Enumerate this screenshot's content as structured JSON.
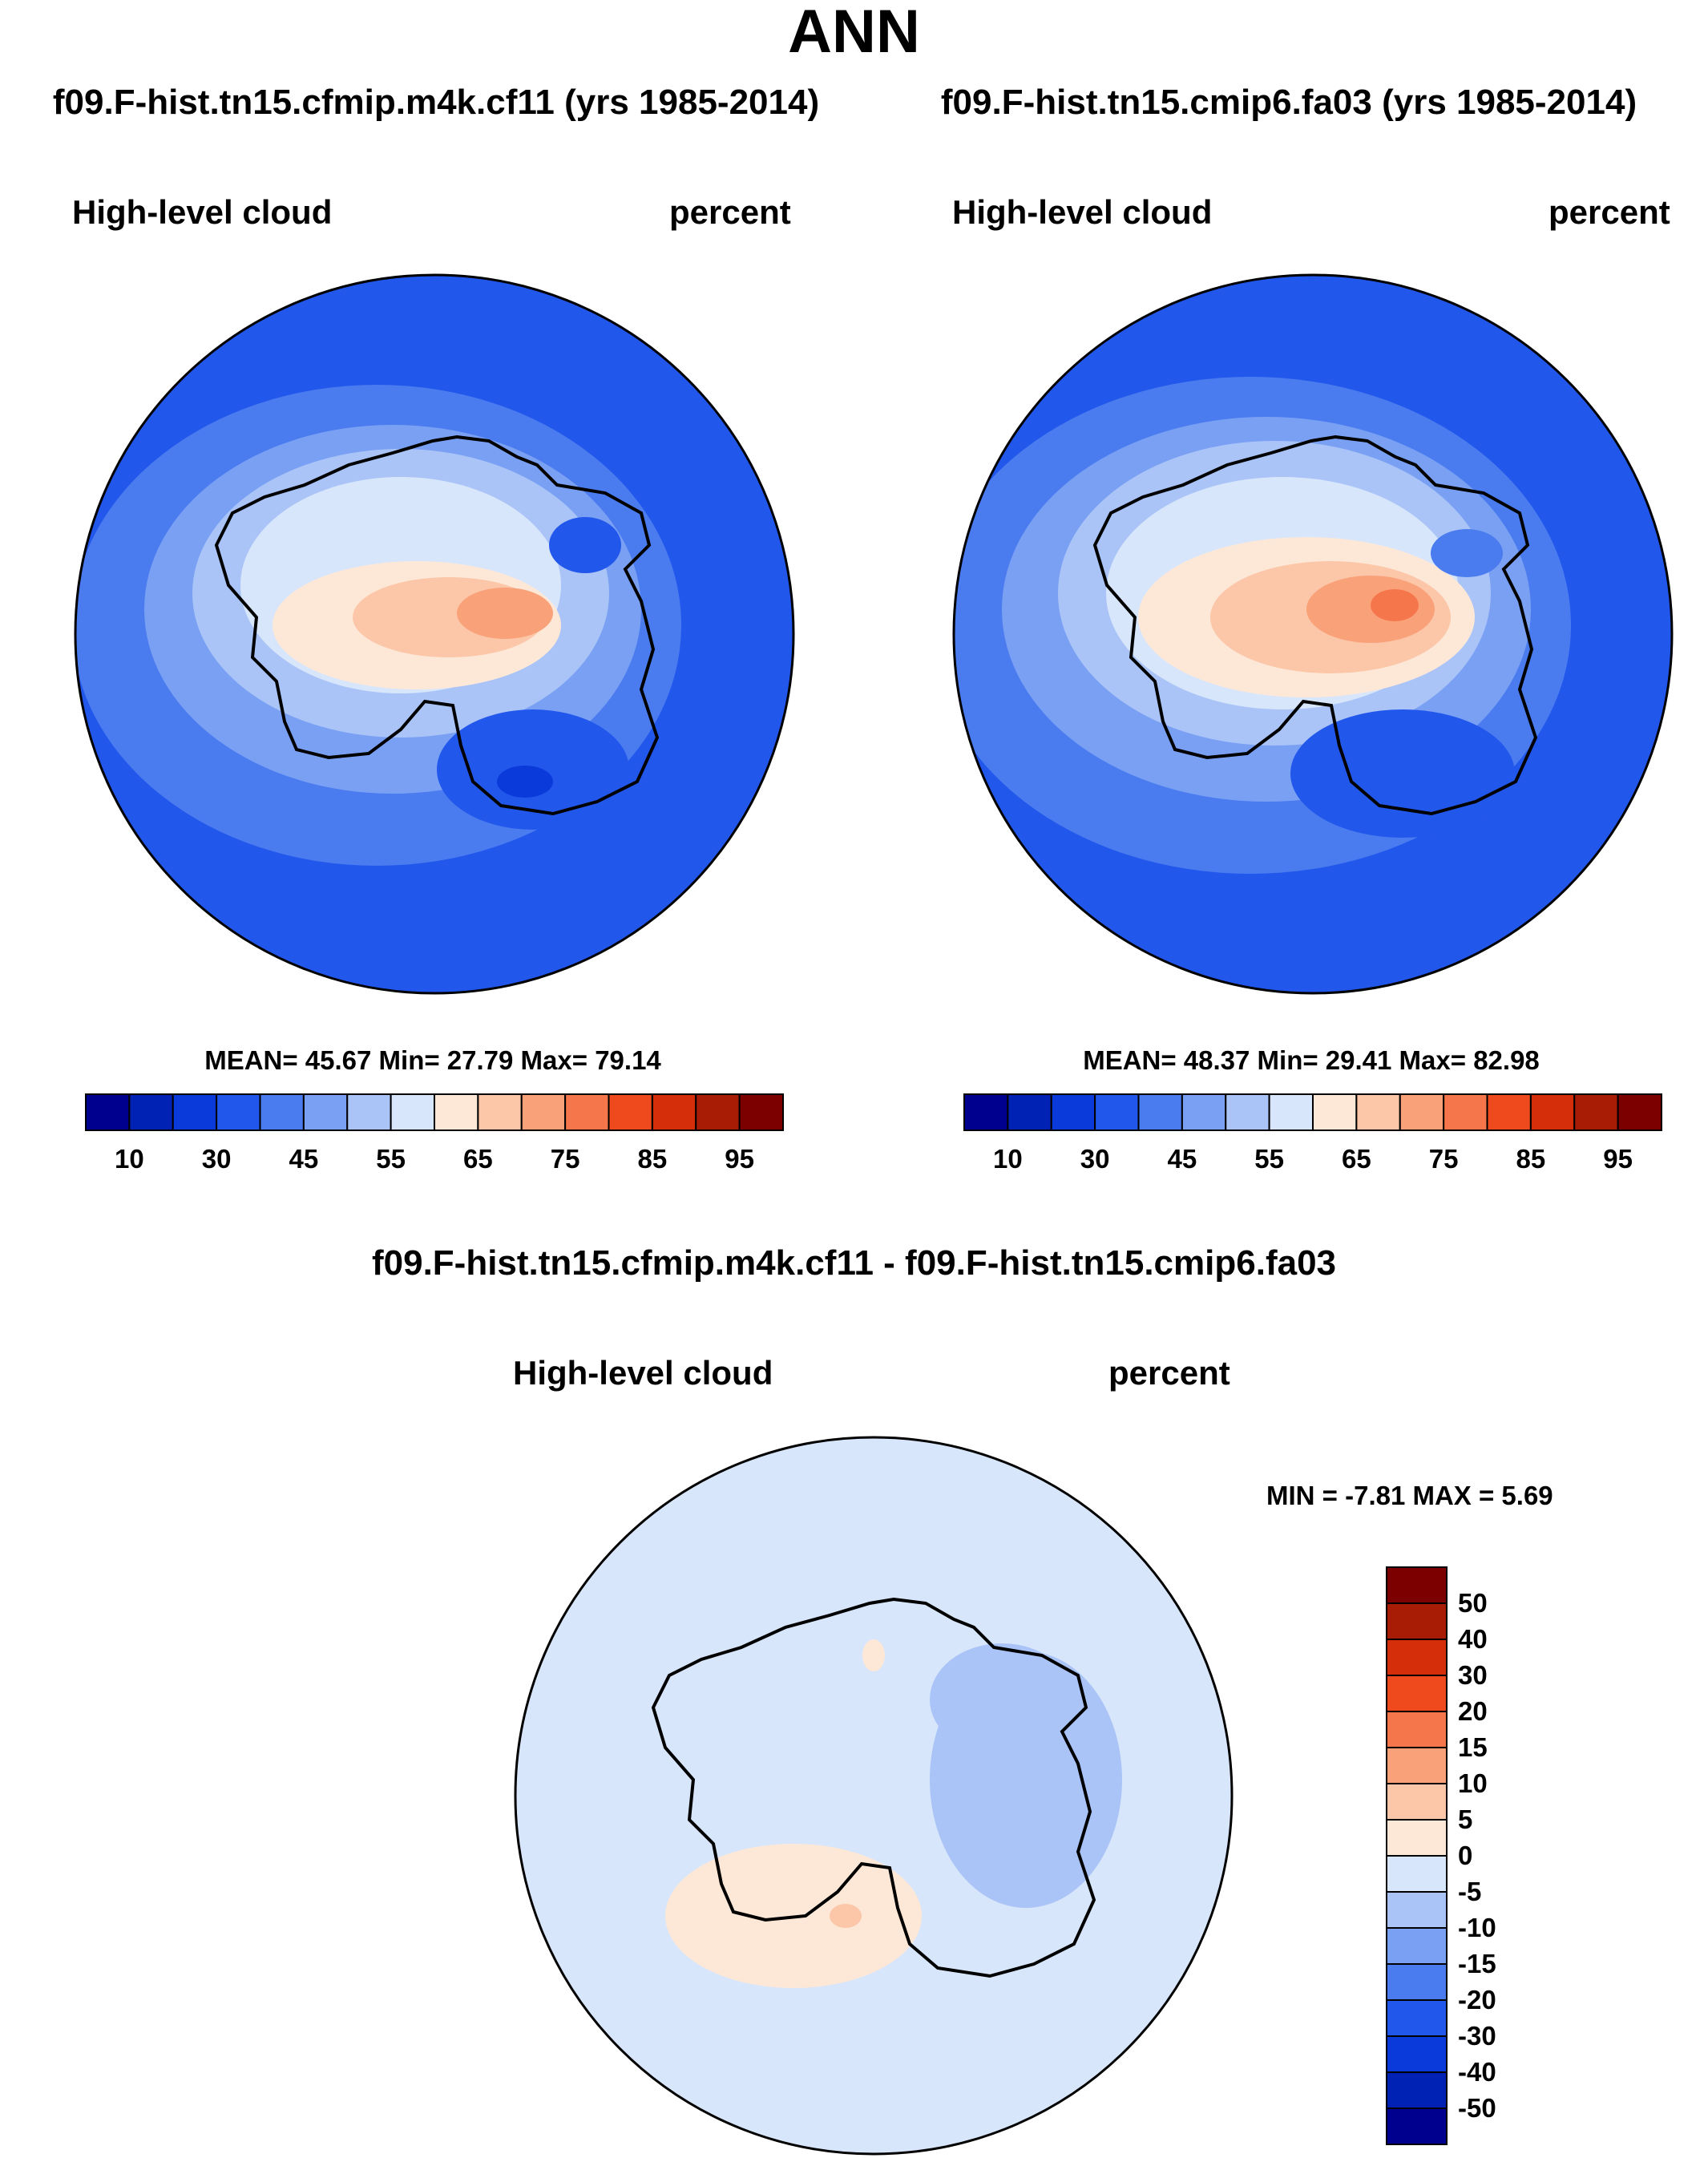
{
  "title": "ANN",
  "panels": [
    {
      "case_title": "f09.F-hist.tn15.cfmip.m4k.cf11 (yrs 1985-2014)",
      "variable": "High-level cloud",
      "units": "percent",
      "stats": "MEAN=  45.67  Min=  27.79  Max=  79.14",
      "mean": 45.67,
      "min": 27.79,
      "max": 79.14
    },
    {
      "case_title": "f09.F-hist.tn15.cmip6.fa03 (yrs 1985-2014)",
      "variable": "High-level cloud",
      "units": "percent",
      "stats": "MEAN=  48.37  Min=  29.41  Max=  82.98",
      "mean": 48.37,
      "min": 29.41,
      "max": 82.98
    }
  ],
  "diff_panel": {
    "case_title": "f09.F-hist.tn15.cfmip.m4k.cf11 - f09.F-hist.tn15.cmip6.fa03",
    "variable": "High-level cloud",
    "units": "percent",
    "stats": "MIN =  -7.81 MAX =   5.69",
    "min": -7.81,
    "max": 5.69
  },
  "colorbar_main": {
    "colors": [
      "#00008e",
      "#0022b4",
      "#0a3ada",
      "#2257ec",
      "#4a7cef",
      "#7aa0f4",
      "#aac4f7",
      "#d8e6fb",
      "#fde8d8",
      "#fcc6a8",
      "#f9a27a",
      "#f5764a",
      "#ef4a1e",
      "#d42e0a",
      "#a81b05",
      "#7c0000"
    ],
    "tick_labels": [
      "10",
      "30",
      "45",
      "55",
      "65",
      "75",
      "85",
      "95"
    ]
  },
  "colorbar_diff": {
    "colors": [
      "#7c0000",
      "#a81b05",
      "#d42e0a",
      "#ef4a1e",
      "#f5764a",
      "#f9a27a",
      "#fcc6a8",
      "#fde8d8",
      "#d8e6fb",
      "#aac4f7",
      "#7aa0f4",
      "#4a7cef",
      "#2257ec",
      "#0a3ada",
      "#0022b4",
      "#00008e"
    ],
    "tick_labels": [
      "50",
      "40",
      "30",
      "20",
      "15",
      "10",
      "5",
      "0",
      "-5",
      "-10",
      "-15",
      "-20",
      "-30",
      "-40",
      "-50"
    ]
  }
}
